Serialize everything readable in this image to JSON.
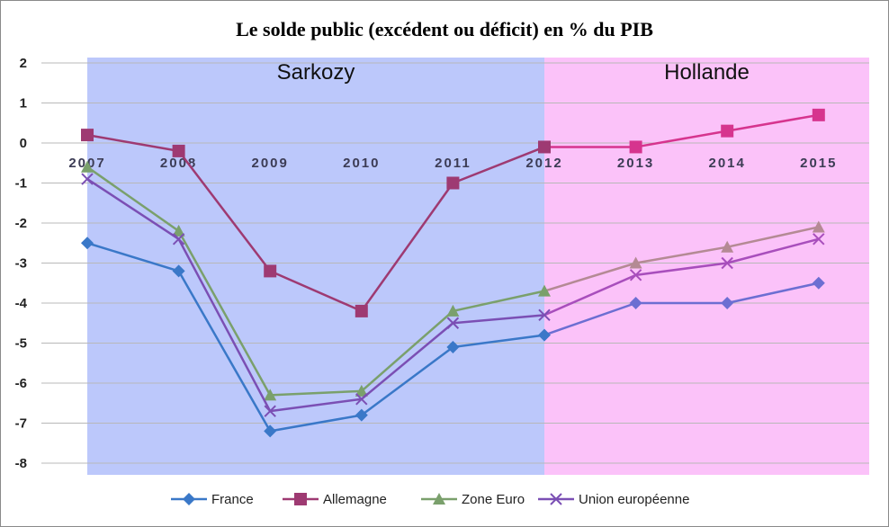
{
  "chart_data": {
    "type": "line",
    "title": "Le solde public (excédent ou déficit) en % du PIB",
    "categories": [
      "2007",
      "2008",
      "2009",
      "2010",
      "2011",
      "2012",
      "2013",
      "2014",
      "2015"
    ],
    "ylim": [
      -8,
      2
    ],
    "yticks": [
      "2",
      "1",
      "0",
      "-1",
      "-2",
      "-3",
      "-4",
      "-5",
      "-6",
      "-7",
      "-8"
    ],
    "grid": true,
    "legend": "bottom",
    "periods": [
      {
        "label": "Sarkozy",
        "from": "2007",
        "to": "2012",
        "color": "#bcc8fb"
      },
      {
        "label": "Hollande",
        "from": "2012",
        "to": "2015",
        "color": "#fbc2f9"
      }
    ],
    "series": [
      {
        "name": "France",
        "marker": "diamond",
        "color": "#3a78c8",
        "color_alt": "#6c6ed2",
        "values": [
          -2.5,
          -3.2,
          -7.2,
          -6.8,
          -5.1,
          -4.8,
          -4.0,
          -4.0,
          -3.5
        ]
      },
      {
        "name": "Allemagne",
        "marker": "square",
        "color": "#9e3a72",
        "color_alt": "#d6348e",
        "values": [
          0.2,
          -0.2,
          -3.2,
          -4.2,
          -1.0,
          -0.1,
          -0.1,
          0.3,
          0.7
        ]
      },
      {
        "name": "Zone Euro",
        "marker": "triangle",
        "color": "#7aa06c",
        "color_alt": "#b48a94",
        "values": [
          -0.6,
          -2.2,
          -6.3,
          -6.2,
          -4.2,
          -3.7,
          -3.0,
          -2.6,
          -2.1
        ]
      },
      {
        "name": "Union européenne",
        "marker": "cross",
        "color": "#7b4fb4",
        "color_alt": "#a84ebc",
        "values": [
          -0.9,
          -2.4,
          -6.7,
          -6.4,
          -4.5,
          -4.3,
          -3.3,
          -3.0,
          -2.4
        ]
      }
    ]
  }
}
